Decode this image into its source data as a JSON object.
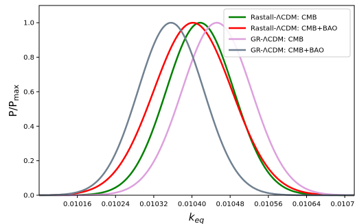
{
  "chart_data": {
    "type": "line",
    "title": "",
    "xlabel": "k",
    "xlabel_sub": "eq",
    "ylabel": "P/P",
    "ylabel_sub": "max",
    "xlim": [
      0.01008,
      0.01074
    ],
    "ylim": [
      0.0,
      1.1
    ],
    "x_ticks": [
      0.01016,
      0.01024,
      0.01032,
      0.0104,
      0.01048,
      0.01056,
      0.01064,
      0.01072
    ],
    "x_tick_labels": [
      "0.01016",
      "0.01024",
      "0.01032",
      "0.01040",
      "0.01048",
      "0.01056",
      "0.01064",
      "0.01072"
    ],
    "y_ticks": [
      0.0,
      0.2,
      0.4,
      0.6,
      0.8,
      1.0
    ],
    "y_tick_labels": [
      "0.0",
      "0.2",
      "0.4",
      "0.6",
      "0.8",
      "1.0"
    ],
    "grid": false,
    "legend_position": "top-right",
    "series": [
      {
        "name": "Rastall-ΛCDM: CMB",
        "color": "#008000",
        "peak_x": 0.010417,
        "sigma": 7.1e-05
      },
      {
        "name": "Rastall-ΛCDM: CMB+BAO",
        "color": "#ff0000",
        "peak_x": 0.010402,
        "sigma": 8.2e-05
      },
      {
        "name": "GR-ΛCDM: CMB",
        "color": "#dda0dd",
        "peak_x": 0.010452,
        "sigma": 7.3e-05
      },
      {
        "name": "GR-ΛCDM: CMB+BAO",
        "color": "#708090",
        "peak_x": 0.010356,
        "sigma": 6.9e-05
      }
    ]
  }
}
